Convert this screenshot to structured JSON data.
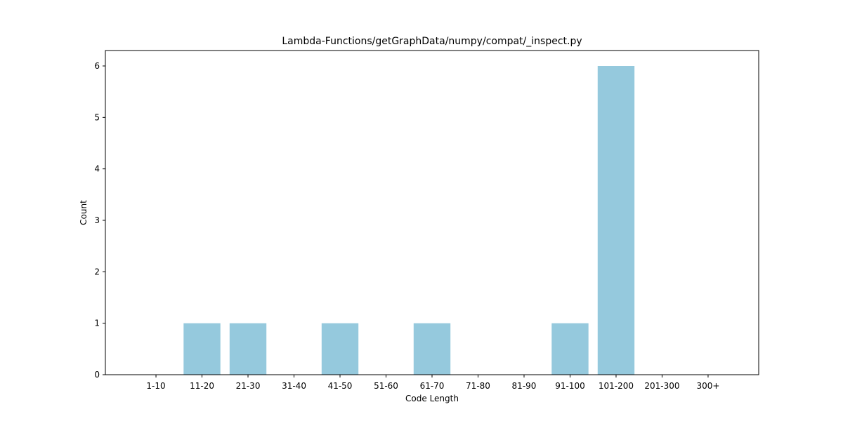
{
  "chart_data": {
    "type": "bar",
    "title": "Lambda-Functions/getGraphData/numpy/compat/_inspect.py",
    "xlabel": "Code Length",
    "ylabel": "Count",
    "categories": [
      "1-10",
      "11-20",
      "21-30",
      "31-40",
      "41-50",
      "51-60",
      "61-70",
      "71-80",
      "81-90",
      "91-100",
      "101-200",
      "201-300",
      "300+"
    ],
    "values": [
      0,
      1,
      1,
      0,
      1,
      0,
      1,
      0,
      0,
      1,
      6,
      0,
      0
    ],
    "ylim": [
      0,
      6.3
    ],
    "yticks": [
      0,
      1,
      2,
      3,
      4,
      5,
      6
    ],
    "grid": false,
    "bar_color": "#95c9dd"
  }
}
